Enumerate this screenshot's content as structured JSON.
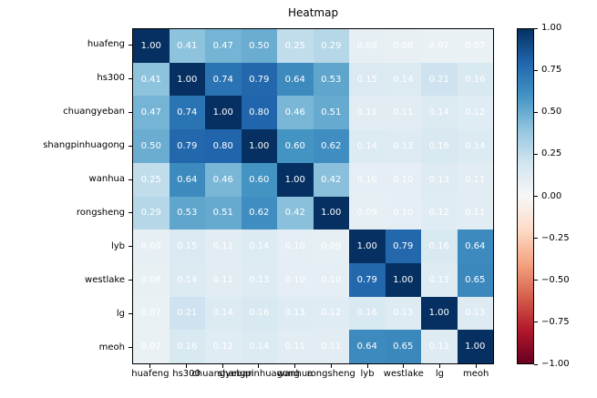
{
  "chart_data": {
    "type": "heatmap",
    "title": "Heatmap",
    "labels": [
      "huafeng",
      "hs300",
      "chuangyeban",
      "shangpinhuagong",
      "wanhua",
      "rongsheng",
      "lyb",
      "westlake",
      "lg",
      "meoh"
    ],
    "matrix": [
      [
        1.0,
        0.41,
        0.47,
        0.5,
        0.25,
        0.29,
        0.09,
        0.08,
        0.07,
        0.07
      ],
      [
        0.41,
        1.0,
        0.74,
        0.79,
        0.64,
        0.53,
        0.15,
        0.14,
        0.21,
        0.16
      ],
      [
        0.47,
        0.74,
        1.0,
        0.8,
        0.46,
        0.51,
        0.11,
        0.11,
        0.14,
        0.12
      ],
      [
        0.5,
        0.79,
        0.8,
        1.0,
        0.6,
        0.62,
        0.14,
        0.13,
        0.16,
        0.14
      ],
      [
        0.25,
        0.64,
        0.46,
        0.6,
        1.0,
        0.42,
        0.1,
        0.1,
        0.13,
        0.11
      ],
      [
        0.29,
        0.53,
        0.51,
        0.62,
        0.42,
        1.0,
        0.09,
        0.1,
        0.12,
        0.11
      ],
      [
        0.09,
        0.15,
        0.11,
        0.14,
        0.1,
        0.09,
        1.0,
        0.79,
        0.16,
        0.64
      ],
      [
        0.08,
        0.14,
        0.11,
        0.13,
        0.1,
        0.1,
        0.79,
        1.0,
        0.13,
        0.65
      ],
      [
        0.07,
        0.21,
        0.14,
        0.16,
        0.13,
        0.12,
        0.16,
        0.13,
        1.0,
        0.13
      ],
      [
        0.07,
        0.16,
        0.12,
        0.14,
        0.11,
        0.11,
        0.64,
        0.65,
        0.13,
        1.0
      ]
    ],
    "value_decimals": 2,
    "annotation_color": "#ffffff",
    "colormap": {
      "name": "RdBu",
      "vmin": -1,
      "vmax": 1,
      "anchors": [
        "#67001f",
        "#b2182b",
        "#d6604d",
        "#f4a582",
        "#fddbc7",
        "#f7f7f7",
        "#d1e5f0",
        "#92c5de",
        "#4393c3",
        "#2166ac",
        "#053061"
      ]
    },
    "colorbar_ticks": [
      {
        "value": 1.0,
        "label": "1.00"
      },
      {
        "value": 0.75,
        "label": "0.75"
      },
      {
        "value": 0.5,
        "label": "0.50"
      },
      {
        "value": 0.25,
        "label": "0.25"
      },
      {
        "value": 0.0,
        "label": "0.00"
      },
      {
        "value": -0.25,
        "label": "−0.25"
      },
      {
        "value": -0.5,
        "label": "−0.50"
      },
      {
        "value": -0.75,
        "label": "−0.75"
      },
      {
        "value": -1.0,
        "label": "−1.00"
      }
    ],
    "layout_hints": {
      "grid": false,
      "legend": "colorbar-right",
      "axis_tick_color": "#000000"
    }
  }
}
